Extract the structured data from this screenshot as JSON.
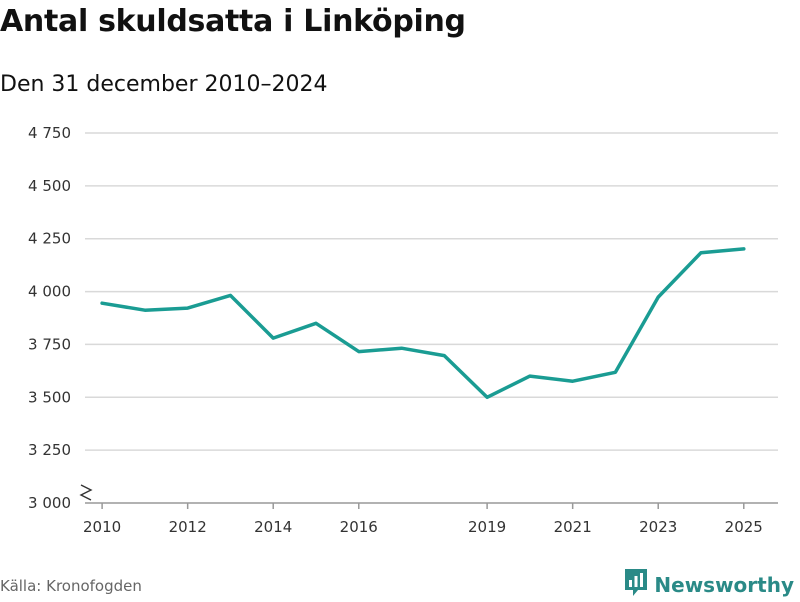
{
  "header": {
    "title": "Antal skuldsatta i Linköping",
    "subtitle": "Den 31 december 2010–2024"
  },
  "footer": {
    "source": "Källa: Kronofogden",
    "brand": "Newsworthy",
    "brand_icon": "newsworthy-logo-icon"
  },
  "colors": {
    "line": "#1a9c93",
    "grid": "#d9d9d9",
    "brand": "#2a8a87"
  },
  "chart_data": {
    "type": "line",
    "title": "Antal skuldsatta i Linköping",
    "subtitle": "Den 31 december 2010–2024",
    "xlabel": "",
    "ylabel": "",
    "x": [
      2010,
      2011,
      2012,
      2013,
      2014,
      2015,
      2016,
      2017,
      2018,
      2019,
      2020,
      2021,
      2022,
      2023,
      2024,
      2025
    ],
    "series": [
      {
        "name": "Antal skuldsatta",
        "values": [
          3945,
          3912,
          3922,
          3982,
          3780,
          3850,
          3716,
          3732,
          3697,
          3500,
          3600,
          3576,
          3618,
          3974,
          4184,
          4202
        ]
      }
    ],
    "xticks": [
      2010,
      2012,
      2014,
      2016,
      2019,
      2021,
      2023,
      2025
    ],
    "xtick_labels": [
      "2010",
      "2012",
      "2014",
      "2016",
      "2019",
      "2021",
      "2023",
      "2025"
    ],
    "yticks": [
      3000,
      3250,
      3500,
      3750,
      4000,
      4250,
      4500,
      4750
    ],
    "ytick_labels": [
      "3 000",
      "3 250",
      "3 500",
      "3 750",
      "4 000",
      "4 250",
      "4 500",
      "4 750"
    ],
    "xlim": [
      2009.6,
      2025.8
    ],
    "ylim": [
      3000,
      4750
    ],
    "grid": true,
    "axis_break": true
  }
}
